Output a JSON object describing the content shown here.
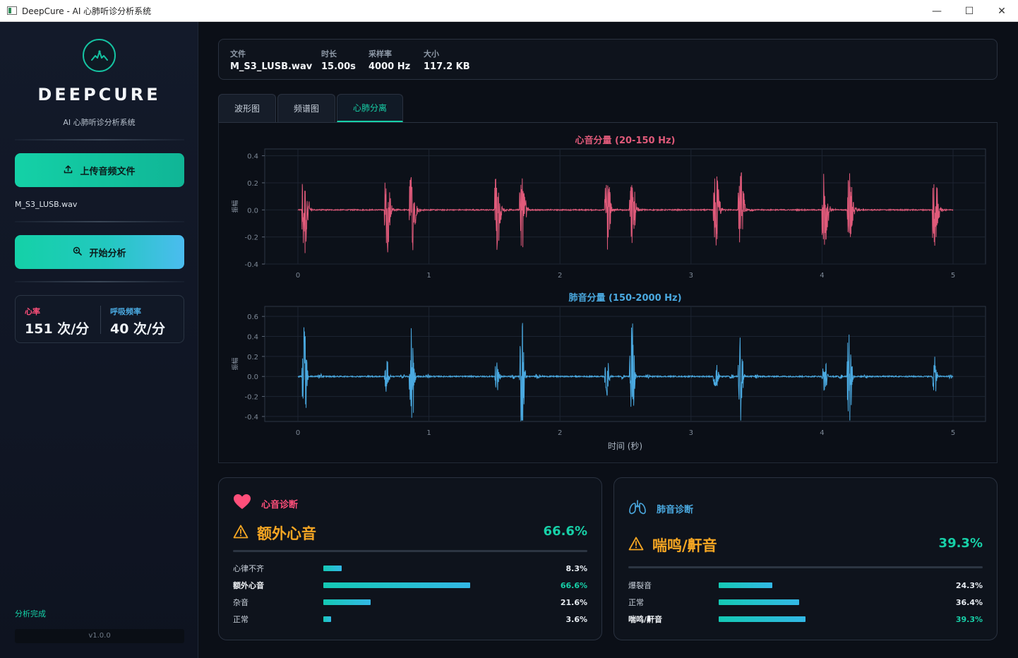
{
  "window": {
    "title": "DeepCure - AI 心肺听诊分析系统",
    "controls": [
      "—",
      "☐",
      "✕"
    ]
  },
  "sidebar": {
    "brand": "DEEPCURE",
    "subtitle": "AI 心肺听诊分析系统",
    "upload_label": "上传音频文件",
    "file_name": "M_S3_LUSB.wav",
    "analyze_label": "开始分析",
    "heart_rate_label": "心率",
    "heart_rate_value": "151 次/分",
    "resp_rate_label": "呼吸频率",
    "resp_rate_value": "40 次/分",
    "status": "分析完成",
    "version": "v1.0.0"
  },
  "file_info": {
    "file_label": "文件",
    "file_value": "M_S3_LUSB.wav",
    "duration_label": "时长",
    "duration_value": "15.00s",
    "sr_label": "采样率",
    "sr_value": "4000 Hz",
    "size_label": "大小",
    "size_value": "117.2 KB"
  },
  "tabs": [
    {
      "label": "波形图",
      "active": false
    },
    {
      "label": "频谱图",
      "active": false
    },
    {
      "label": "心肺分离",
      "active": true
    }
  ],
  "chart_data": [
    {
      "type": "line",
      "title": "心音分量 (20-150 Hz)",
      "ylabel": "振幅",
      "xlabel": "",
      "xlim": [
        0,
        5
      ],
      "ylim": [
        -0.4,
        0.45
      ],
      "xticks": [
        "0",
        "1",
        "2",
        "3",
        "4",
        "5"
      ],
      "yticks": [
        "0.4",
        "0.2",
        "0.0",
        "-0.2",
        "-0.4"
      ],
      "color": "#e05a7a",
      "grid": true,
      "bursts": [
        {
          "t": 0.05,
          "amp": 0.42
        },
        {
          "t": 0.68,
          "amp": 0.32
        },
        {
          "t": 0.87,
          "amp": 0.32
        },
        {
          "t": 1.52,
          "amp": 0.33
        },
        {
          "t": 1.71,
          "amp": 0.28
        },
        {
          "t": 2.36,
          "amp": 0.3
        },
        {
          "t": 2.55,
          "amp": 0.26
        },
        {
          "t": 3.19,
          "amp": 0.33
        },
        {
          "t": 3.38,
          "amp": 0.28
        },
        {
          "t": 4.02,
          "amp": 0.37
        },
        {
          "t": 4.21,
          "amp": 0.28
        },
        {
          "t": 4.86,
          "amp": 0.32
        }
      ]
    },
    {
      "type": "line",
      "title": "肺音分量 (150-2000 Hz)",
      "ylabel": "振幅",
      "xlabel": "时间 (秒)",
      "xlim": [
        0,
        5
      ],
      "ylim": [
        -0.45,
        0.7
      ],
      "xticks": [
        "0",
        "1",
        "2",
        "3",
        "4",
        "5"
      ],
      "yticks": [
        "0.6",
        "0.4",
        "0.2",
        "0.0",
        "-0.2",
        "-0.4"
      ],
      "color": "#4aa9e0",
      "grid": true,
      "bursts": [
        {
          "t": 0.05,
          "amp": 0.56
        },
        {
          "t": 0.68,
          "amp": 0.2
        },
        {
          "t": 0.87,
          "amp": 0.62
        },
        {
          "t": 1.52,
          "amp": 0.2
        },
        {
          "t": 1.71,
          "amp": 0.65
        },
        {
          "t": 2.36,
          "amp": 0.2
        },
        {
          "t": 2.55,
          "amp": 0.65
        },
        {
          "t": 3.19,
          "amp": 0.2
        },
        {
          "t": 3.38,
          "amp": 0.55
        },
        {
          "t": 4.02,
          "amp": 0.2
        },
        {
          "t": 4.21,
          "amp": 0.69
        },
        {
          "t": 4.86,
          "amp": 0.2
        }
      ]
    }
  ],
  "heart_diag": {
    "title": "心音诊断",
    "title_color": "#ff4f7a",
    "result": "额外心音",
    "confidence": "66.6%",
    "items": [
      {
        "label": "心律不齐",
        "value": "8.3%",
        "fraction": 0.083,
        "highlight": false
      },
      {
        "label": "额外心音",
        "value": "66.6%",
        "fraction": 0.666,
        "highlight": true
      },
      {
        "label": "杂音",
        "value": "21.6%",
        "fraction": 0.216,
        "highlight": false
      },
      {
        "label": "正常",
        "value": "3.6%",
        "fraction": 0.036,
        "highlight": false
      }
    ]
  },
  "lung_diag": {
    "title": "肺音诊断",
    "title_color": "#4aa9e0",
    "result": "喘鸣/鼾音",
    "confidence": "39.3%",
    "items": [
      {
        "label": "爆裂音",
        "value": "24.3%",
        "fraction": 0.243,
        "highlight": false
      },
      {
        "label": "正常",
        "value": "36.4%",
        "fraction": 0.364,
        "highlight": false
      },
      {
        "label": "喘鸣/鼾音",
        "value": "39.3%",
        "fraction": 0.393,
        "highlight": true
      }
    ]
  }
}
